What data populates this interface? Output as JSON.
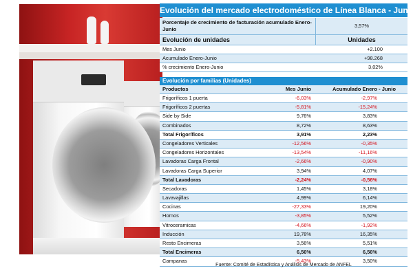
{
  "title": "Evolución del mercado electrodoméstico de Línea Blanca - Junio",
  "summary": {
    "pct_label": "Porcentaje de crecimiento de facturación acumulado Enero-Junio",
    "pct_value": "3,57%",
    "units_header": "Evolución de unidades",
    "units_col": "Unidades",
    "rows": [
      {
        "label": "Mes Junio",
        "value": "+2.100"
      },
      {
        "label": "Acumulado Enero-Junio",
        "value": "+98.268"
      },
      {
        "label": "% crecimiento Enero-Junio",
        "value": "3,02%"
      }
    ]
  },
  "families": {
    "section_title": "Evolución por familias (Unidades)",
    "columns": [
      "Productos",
      "Mes Junio",
      "Acumulado Enero - Junio"
    ],
    "rows": [
      {
        "product": "Frigoríficos 1 puerta",
        "month": "-6,03%",
        "acc": "-2,97%"
      },
      {
        "product": "Frigoríficos 2 puertas",
        "month": "-5,81%",
        "acc": "-15,24%"
      },
      {
        "product": "Side by Side",
        "month": "9,76%",
        "acc": "3,83%"
      },
      {
        "product": "Combinados",
        "month": "8,72%",
        "acc": "8,63%"
      },
      {
        "product": "Total Frigoríficos",
        "month": "3,91%",
        "acc": "2,23%"
      },
      {
        "product": "Congeladores Verticales",
        "month": "-12,56%",
        "acc": "-0,35%"
      },
      {
        "product": "Congeladores Horizontales",
        "month": "-13,54%",
        "acc": "-11,16%"
      },
      {
        "product": "Lavadoras Carga Frontal",
        "month": "-2,66%",
        "acc": "-0,90%"
      },
      {
        "product": "Lavadoras Carga Superior",
        "month": "3,94%",
        "acc": "4,07%"
      },
      {
        "product": "Total Lavadoras",
        "month": "-2,24%",
        "acc": "-0,56%"
      },
      {
        "product": "Secadoras",
        "month": "1,45%",
        "acc": "3,18%"
      },
      {
        "product": "Lavavajillas",
        "month": "4,99%",
        "acc": "6,14%"
      },
      {
        "product": "Cocinas",
        "month": "-27,33%",
        "acc": "19,20%"
      },
      {
        "product": "Hornos",
        "month": "-3,85%",
        "acc": "5,52%"
      },
      {
        "product": "Vitroceramicas",
        "month": "-4,66%",
        "acc": "-1,92%"
      },
      {
        "product": "Inducción",
        "month": "19,78%",
        "acc": "16,35%"
      },
      {
        "product": "Resto Encimeras",
        "month": "3,56%",
        "acc": "5,51%"
      },
      {
        "product": "Total Encimeras",
        "month": "6,56%",
        "acc": "6,56%"
      },
      {
        "product": "Campanas",
        "month": "-5,43%",
        "acc": "3,50%"
      }
    ]
  },
  "source": "Fuente: Comité de Estadística y Análisis de Mercado de ANFEL",
  "colors": {
    "header_blue": "#1f8fd1",
    "light_blue": "#dcebf6",
    "negative_red": "#d4111b"
  }
}
